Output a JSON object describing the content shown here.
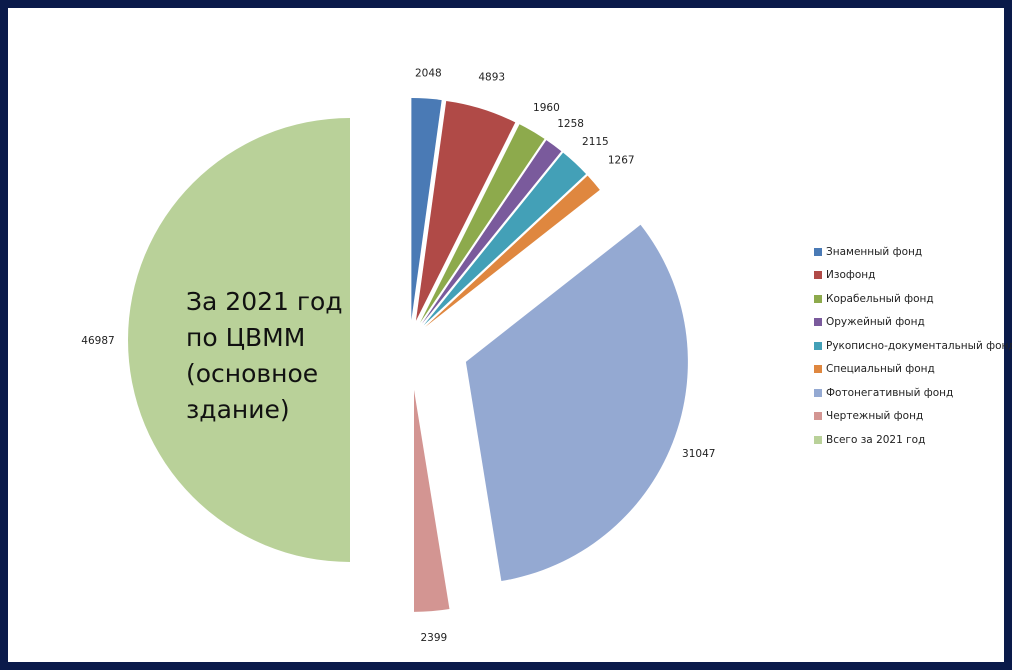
{
  "center_text": "За 2021 год\nпо ЦВММ\n(основное\nздание)",
  "chart_data": {
    "type": "pie",
    "exploded": true,
    "start_angle_deg": 0,
    "direction": "clockwise",
    "legend_position": "right",
    "slices": [
      {
        "label": "Знаменный фонд",
        "value": 2048,
        "color": "#4a7ab5"
      },
      {
        "label": "Изофонд",
        "value": 4893,
        "color": "#b04a47"
      },
      {
        "label": "Корабельный фонд",
        "value": 1960,
        "color": "#8daa4c"
      },
      {
        "label": "Оружейный фонд",
        "value": 1258,
        "color": "#7a5a9c"
      },
      {
        "label": "Рукописно-документальный фонд",
        "value": 2115,
        "color": "#43a0b7"
      },
      {
        "label": "Специальный фонд",
        "value": 1267,
        "color": "#df873f"
      },
      {
        "label": "Фотонегативный фонд",
        "value": 31047,
        "color": "#94a9d2"
      },
      {
        "label": "Чертежный фонд",
        "value": 2399,
        "color": "#d39592"
      },
      {
        "label": "Всего за 2021 год",
        "value": 46987,
        "color": "#b9d199"
      }
    ]
  }
}
